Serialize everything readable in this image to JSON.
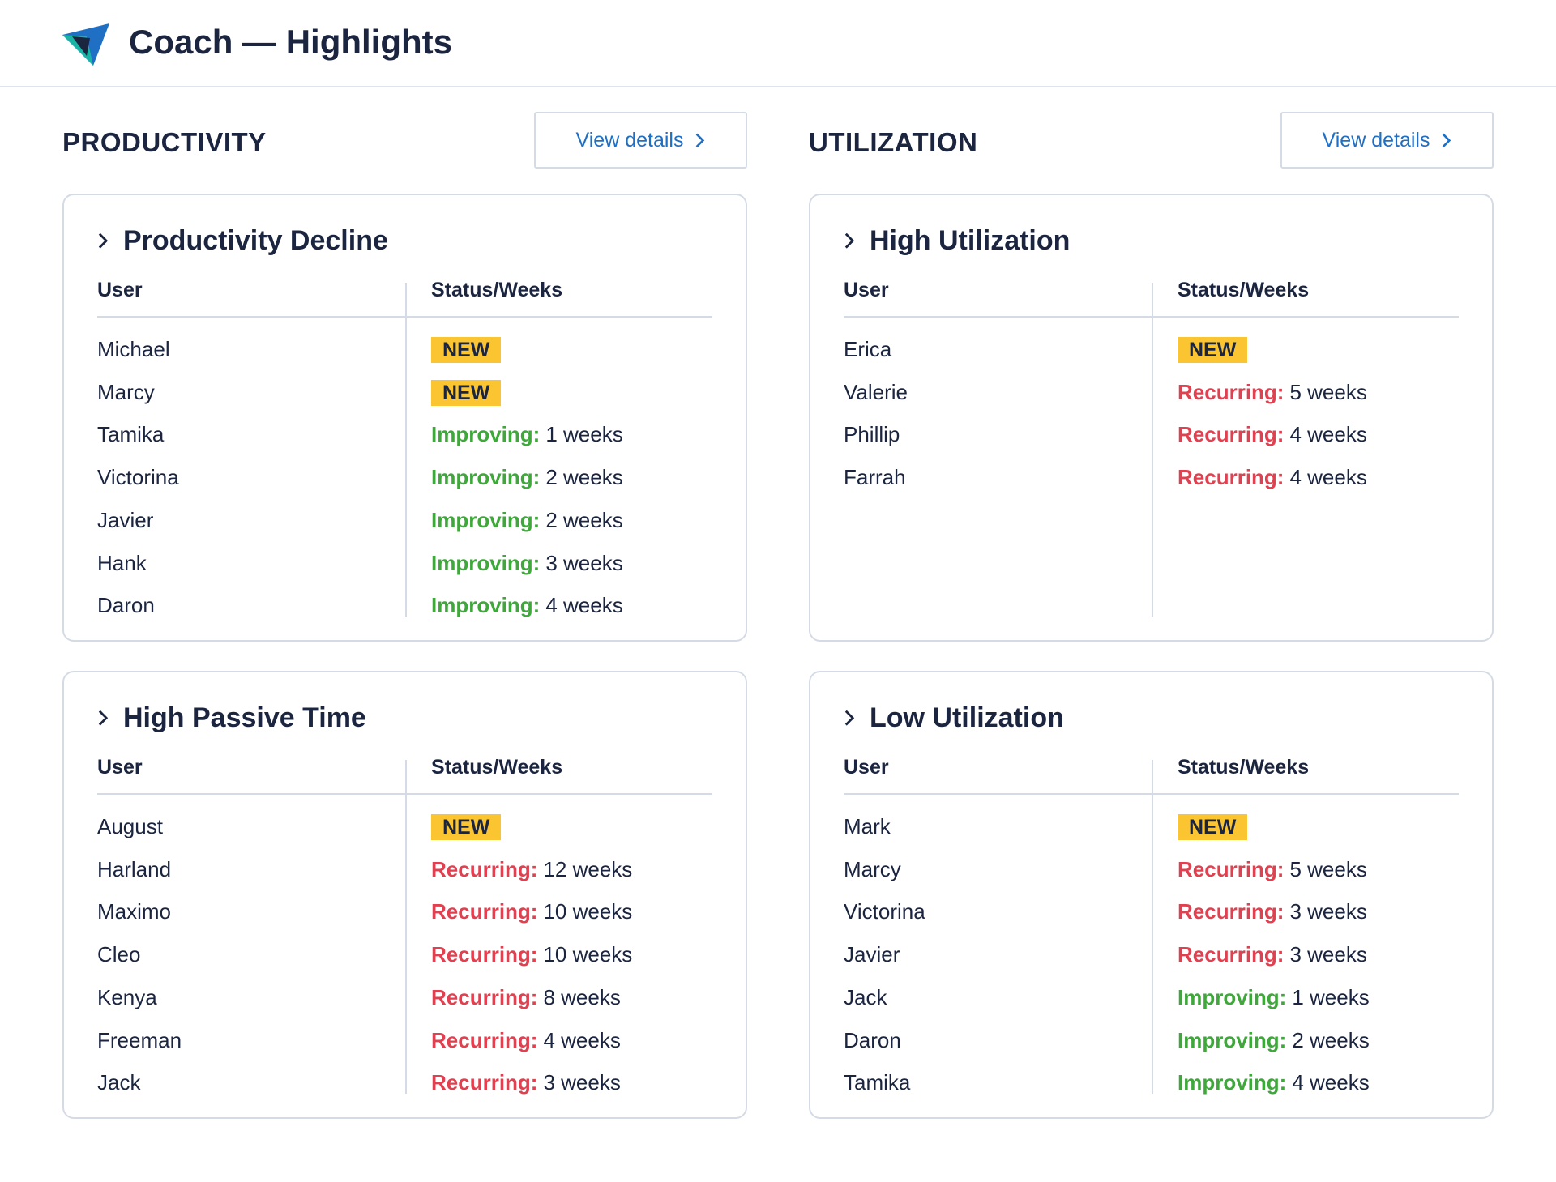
{
  "header": {
    "title": "Coach — Highlights"
  },
  "sections": [
    {
      "title": "PRODUCTIVITY",
      "button": "View details",
      "cards": [
        {
          "title": "Productivity Decline",
          "columns": [
            "User",
            "Status/Weeks"
          ],
          "rows": [
            {
              "user": "Michael",
              "status": "NEW",
              "badge": true
            },
            {
              "user": "Marcy",
              "status": "NEW",
              "badge": true
            },
            {
              "user": "Tamika",
              "status": "Improving:",
              "weeks": "1 weeks",
              "color": "#3ea83a"
            },
            {
              "user": "Victorina",
              "status": "Improving:",
              "weeks": "2 weeks",
              "color": "#3ea83a"
            },
            {
              "user": "Javier",
              "status": "Improving:",
              "weeks": "2 weeks",
              "color": "#3ea83a"
            },
            {
              "user": "Hank",
              "status": "Improving:",
              "weeks": "3 weeks",
              "color": "#3ea83a"
            },
            {
              "user": "Daron",
              "status": "Improving:",
              "weeks": "4 weeks",
              "color": "#3ea83a"
            }
          ]
        },
        {
          "title": "High Passive Time",
          "columns": [
            "User",
            "Status/Weeks"
          ],
          "rows": [
            {
              "user": "August",
              "status": "NEW",
              "badge": true
            },
            {
              "user": "Harland",
              "status": "Recurring:",
              "weeks": "12 weeks",
              "color": "#e0404f"
            },
            {
              "user": "Maximo",
              "status": "Recurring:",
              "weeks": "10 weeks",
              "color": "#e0404f"
            },
            {
              "user": "Cleo",
              "status": "Recurring:",
              "weeks": "10 weeks",
              "color": "#e0404f"
            },
            {
              "user": "Kenya",
              "status": "Recurring:",
              "weeks": "8 weeks",
              "color": "#e0404f"
            },
            {
              "user": "Freeman",
              "status": "Recurring:",
              "weeks": "4 weeks",
              "color": "#e0404f"
            },
            {
              "user": "Jack",
              "status": "Recurring:",
              "weeks": "3 weeks",
              "color": "#e0404f"
            }
          ]
        }
      ]
    },
    {
      "title": "UTILIZATION",
      "button": "View details",
      "cards": [
        {
          "title": "High Utilization",
          "columns": [
            "User",
            "Status/Weeks"
          ],
          "rows": [
            {
              "user": "Erica",
              "status": "NEW",
              "badge": true
            },
            {
              "user": "Valerie",
              "status": "Recurring:",
              "weeks": "5 weeks",
              "color": "#e0404f"
            },
            {
              "user": "Phillip",
              "status": "Recurring:",
              "weeks": "4 weeks",
              "color": "#e0404f"
            },
            {
              "user": "Farrah",
              "status": "Recurring:",
              "weeks": "4 weeks",
              "color": "#e0404f"
            }
          ]
        },
        {
          "title": "Low Utilization",
          "columns": [
            "User",
            "Status/Weeks"
          ],
          "rows": [
            {
              "user": "Mark",
              "status": "NEW",
              "badge": true
            },
            {
              "user": "Marcy",
              "status": "Recurring:",
              "weeks": "5 weeks",
              "color": "#e0404f"
            },
            {
              "user": "Victorina",
              "status": "Recurring:",
              "weeks": "3 weeks",
              "color": "#e0404f"
            },
            {
              "user": "Javier",
              "status": "Recurring:",
              "weeks": "3 weeks",
              "color": "#e0404f"
            },
            {
              "user": "Jack",
              "status": "Improving:",
              "weeks": "1 weeks",
              "color": "#3ea83a"
            },
            {
              "user": "Daron",
              "status": "Improving:",
              "weeks": "2 weeks",
              "color": "#3ea83a"
            },
            {
              "user": "Tamika",
              "status": "Improving:",
              "weeks": "4 weeks",
              "color": "#3ea83a"
            }
          ]
        }
      ]
    }
  ]
}
